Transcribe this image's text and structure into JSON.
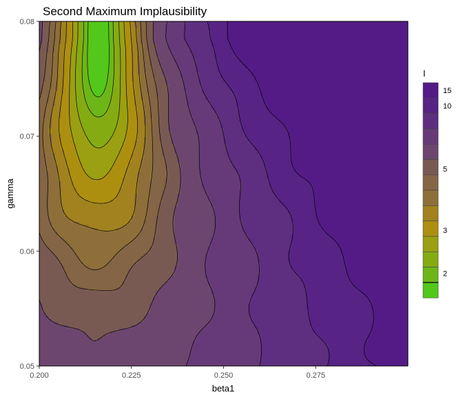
{
  "chart_data": {
    "type": "contour",
    "title": "Second Maximum Implausibility",
    "xlabel": "beta1",
    "ylabel": "gamma",
    "xlim": [
      0.2,
      0.3
    ],
    "ylim": [
      0.05,
      0.08
    ],
    "x_ticks": [
      "0.200",
      "0.225",
      "0.250",
      "0.275"
    ],
    "y_ticks": [
      "0.05",
      "0.06",
      "0.07",
      "0.08"
    ],
    "legend": {
      "title": "I",
      "position": "right",
      "labels": [
        "15",
        "10",
        "5",
        "3",
        "2"
      ],
      "bins": 14,
      "colors_top_to_bottom": [
        "#541b87",
        "#572385",
        "#5e2e80",
        "#663a78",
        "#6c466f",
        "#795a53",
        "#846545",
        "#8e6f3a",
        "#a1821f",
        "#ad8f10",
        "#9aa011",
        "#85ab13",
        "#6cb717",
        "#52c81a"
      ]
    },
    "contour_levels": [
      1.8,
      2.0,
      2.3,
      2.6,
      3.0,
      3.4,
      3.8,
      4.3,
      5.0,
      6.5,
      8.5,
      11.0,
      14.0
    ],
    "function_note_centre": [
      0.216,
      0.0785
    ]
  }
}
